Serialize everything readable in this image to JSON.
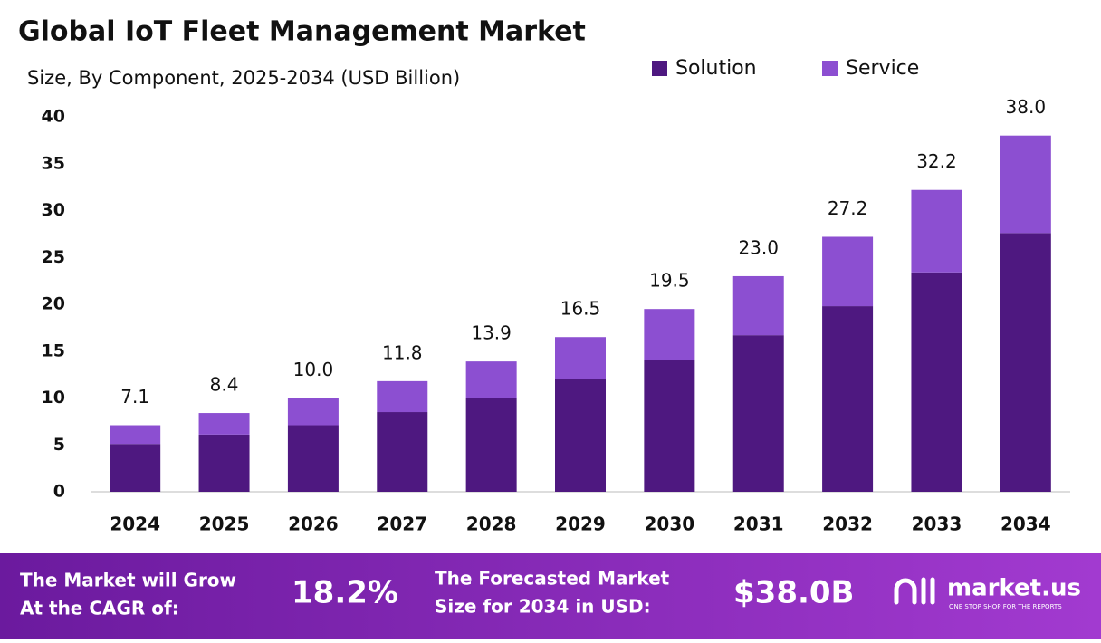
{
  "chart_data": {
    "type": "stacked-bar",
    "title": "Global IoT Fleet Management Market",
    "subtitle": "Size, By Component, 2025-2034 (USD Billion)",
    "categories": [
      "2024",
      "2025",
      "2026",
      "2027",
      "2028",
      "2029",
      "2030",
      "2031",
      "2032",
      "2033",
      "2034"
    ],
    "series": [
      {
        "name": "Solution",
        "color": "#4e1880",
        "values": [
          5.1,
          6.1,
          7.1,
          8.5,
          10.0,
          12.0,
          14.1,
          16.7,
          19.8,
          23.4,
          27.6
        ]
      },
      {
        "name": "Service",
        "color": "#8c4fd1",
        "values": [
          2.0,
          2.3,
          2.9,
          3.3,
          3.9,
          4.5,
          5.4,
          6.3,
          7.4,
          8.8,
          10.4
        ]
      }
    ],
    "totals": [
      7.1,
      8.4,
      10.0,
      11.8,
      13.9,
      16.5,
      19.5,
      23.0,
      27.2,
      32.2,
      38.0
    ],
    "value_labels": [
      "7.1",
      "8.4",
      "10.0",
      "11.8",
      "13.9",
      "16.5",
      "19.5",
      "23.0",
      "27.2",
      "32.2",
      "38.0"
    ],
    "ylim": [
      0,
      40
    ],
    "yticks": [
      0,
      5,
      10,
      15,
      20,
      25,
      30,
      35,
      40
    ],
    "grid": false,
    "legend": "top-right"
  },
  "banner": {
    "cagr_text": [
      "The Market will Grow",
      "At the CAGR of:"
    ],
    "cagr": "18.2%",
    "forecast_text": [
      "The Forecasted Market",
      "Size for 2034 in USD:"
    ],
    "forecast": "$38.0B",
    "logo": "market.us",
    "tagline": "ONE STOP SHOP FOR THE REPORTS"
  }
}
